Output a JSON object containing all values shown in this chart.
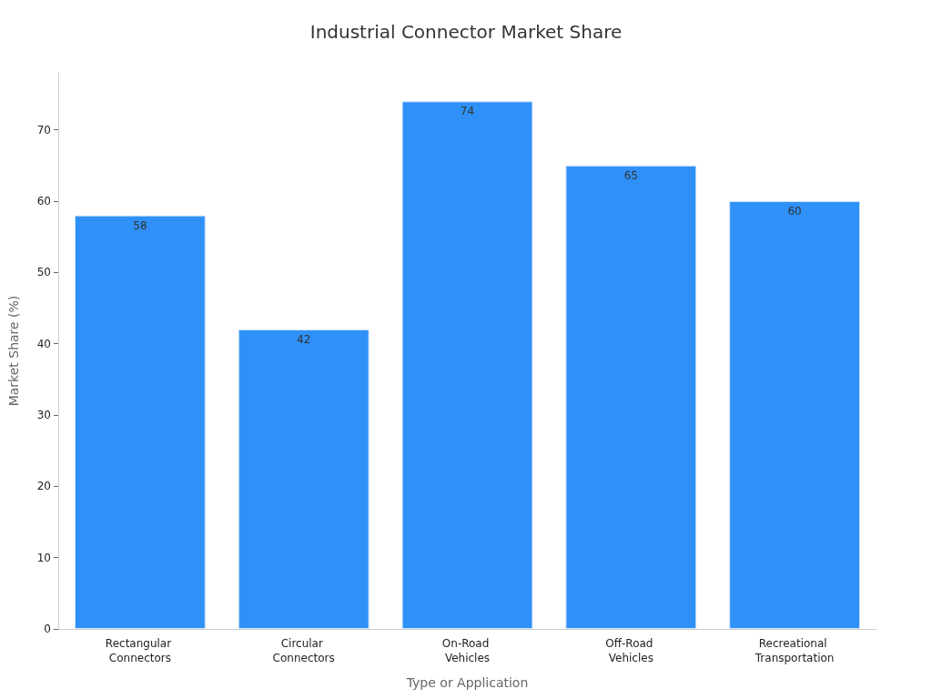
{
  "chart_data": {
    "type": "bar",
    "title": "Industrial Connector Market Share",
    "xlabel": "Type or Application",
    "ylabel": "Market Share (%)",
    "categories": [
      "Rectangular Connectors",
      "Circular Connectors",
      "On-Road Vehicles",
      "Off-Road Vehicles",
      "Recreational Transportation"
    ],
    "values": [
      58,
      42,
      74,
      65,
      60
    ],
    "color": "#2f91f7",
    "ylim": [
      0,
      78
    ],
    "yticks": [
      0,
      10,
      20,
      30,
      40,
      50,
      60,
      70
    ],
    "grid": false,
    "data_labels": true
  }
}
